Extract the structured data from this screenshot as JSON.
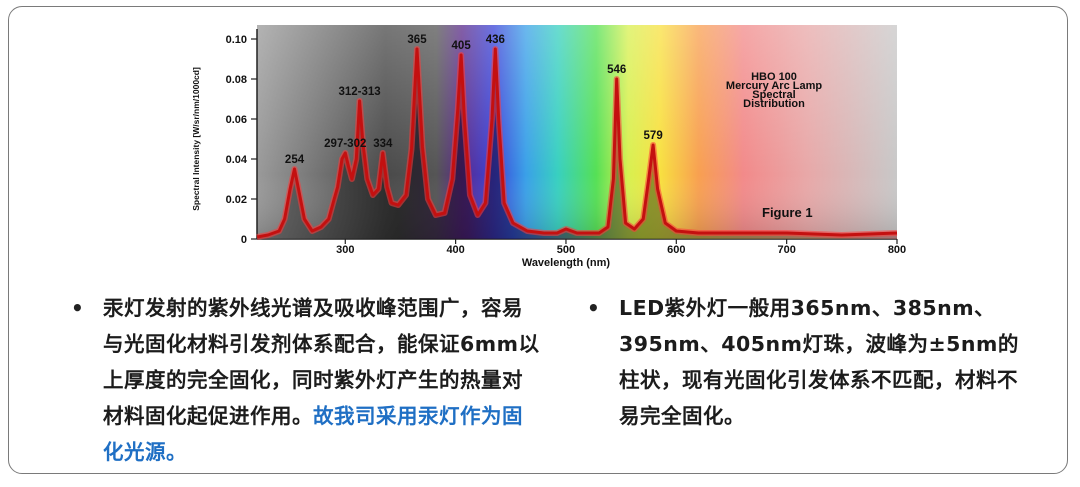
{
  "chart_data": {
    "type": "line",
    "title": "HBO 100\nMercury Arc Lamp\nSpectral\nDistribution",
    "figure_label": "Figure 1",
    "xlabel": "Wavelength (nm)",
    "ylabel": "Spectral Intensity [W/sr/nm/1000cd]",
    "xlim": [
      220,
      800
    ],
    "ylim": [
      0,
      0.1
    ],
    "x_ticks": [
      300,
      400,
      500,
      600,
      700,
      800
    ],
    "x_tick_labels": [
      "300",
      "400",
      "500",
      "600",
      "700",
      "800"
    ],
    "y_ticks": [
      0,
      0.02,
      0.04,
      0.06,
      0.08,
      0.1
    ],
    "y_tick_labels": [
      "0",
      "0.02",
      "0.04",
      "0.06",
      "0.08",
      "0.10"
    ],
    "peaks": [
      {
        "label": "254",
        "x": 254,
        "y": 0.035
      },
      {
        "label": "297-302",
        "x": 300,
        "y": 0.043
      },
      {
        "label": "312-313",
        "x": 313,
        "y": 0.069
      },
      {
        "label": "334",
        "x": 334,
        "y": 0.043
      },
      {
        "label": "365",
        "x": 365,
        "y": 0.095
      },
      {
        "label": "405",
        "x": 405,
        "y": 0.092
      },
      {
        "label": "436",
        "x": 436,
        "y": 0.095
      },
      {
        "label": "546",
        "x": 546,
        "y": 0.08
      },
      {
        "label": "579",
        "x": 579,
        "y": 0.047
      }
    ],
    "curve": {
      "x": [
        220,
        230,
        240,
        245,
        250,
        254,
        258,
        263,
        270,
        278,
        285,
        290,
        293,
        297,
        300,
        303,
        306,
        310,
        313,
        316,
        320,
        325,
        330,
        334,
        338,
        342,
        348,
        355,
        360,
        365,
        370,
        375,
        382,
        390,
        397,
        402,
        405,
        408,
        413,
        420,
        427,
        433,
        436,
        439,
        444,
        452,
        465,
        480,
        492,
        500,
        510,
        520,
        530,
        538,
        543,
        546,
        549,
        554,
        562,
        570,
        575,
        579,
        583,
        590,
        600,
        620,
        650,
        700,
        750,
        800
      ],
      "y": [
        0.001,
        0.002,
        0.004,
        0.01,
        0.025,
        0.035,
        0.024,
        0.01,
        0.004,
        0.006,
        0.01,
        0.02,
        0.026,
        0.04,
        0.043,
        0.036,
        0.03,
        0.04,
        0.069,
        0.048,
        0.03,
        0.022,
        0.025,
        0.043,
        0.026,
        0.018,
        0.017,
        0.022,
        0.045,
        0.095,
        0.046,
        0.02,
        0.012,
        0.013,
        0.03,
        0.065,
        0.092,
        0.06,
        0.022,
        0.012,
        0.018,
        0.06,
        0.095,
        0.06,
        0.018,
        0.008,
        0.004,
        0.003,
        0.003,
        0.005,
        0.003,
        0.003,
        0.003,
        0.006,
        0.03,
        0.08,
        0.04,
        0.008,
        0.005,
        0.01,
        0.03,
        0.047,
        0.025,
        0.008,
        0.004,
        0.003,
        0.003,
        0.003,
        0.002,
        0.003
      ]
    }
  },
  "bullets_left": {
    "dot": "•",
    "text": "汞灯发射的紫外线光谱及吸收峰范围广，容易与光固化材料引发剂体系配合，能保证6mm以上厚度的完全固化，同时紫外灯产生的热量对材料固化起促进作用。",
    "highlight": "故我司采用汞灯作为固化光源。",
    "highlight_color": "#1f6fc4"
  },
  "bullets_right": {
    "dot": "•",
    "text": "LED紫外灯一般用365nm、385nm、395nm、405nm灯珠，波峰为±5nm的柱状，现有光固化引发体系不匹配，材料不易完全固化。"
  }
}
